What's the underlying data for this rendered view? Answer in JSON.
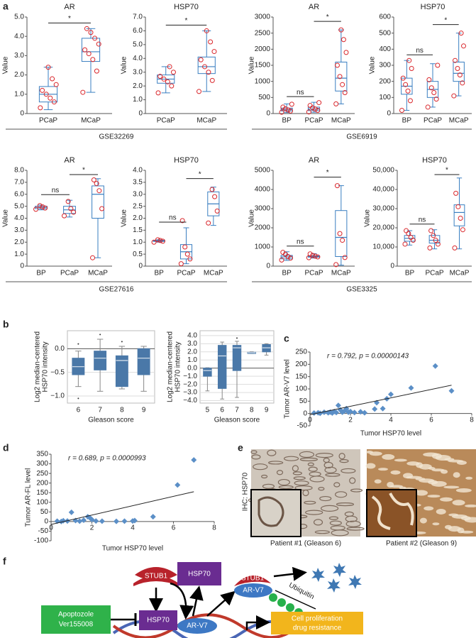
{
  "panel_labels": [
    "a",
    "b",
    "c",
    "d",
    "e",
    "f"
  ],
  "datasets": [
    "GSE32269",
    "GSE6919",
    "GSE27616",
    "GSE3325"
  ],
  "chart_data": [
    {
      "type": "box",
      "title": "AR",
      "ylabel": "Value",
      "categories": [
        "PCaP",
        "MCaP"
      ],
      "ylim": [
        0,
        5
      ],
      "yticks": [
        0,
        {
          "value": 1,
          "label": "1.0"
        },
        {
          "value": 2,
          "label": "2.0"
        },
        {
          "value": 3,
          "label": "3.0"
        },
        {
          "value": 4,
          "label": "4.0"
        },
        {
          "value": 5,
          "label": "5.0"
        }
      ],
      "box_color": "#3a7fc1",
      "point_color": "#d9262b",
      "groups": [
        {
          "min": 0.2,
          "q1": 0.6,
          "median": 1.0,
          "q3": 1.4,
          "max": 2.4,
          "points": [
            0.3,
            0.6,
            0.8,
            1.0,
            1.2,
            1.5,
            1.8,
            2.4
          ]
        },
        {
          "min": 1.1,
          "q1": 2.7,
          "median": 3.2,
          "q3": 3.9,
          "max": 4.4,
          "points": [
            1.1,
            2.2,
            2.8,
            3.1,
            3.3,
            3.6,
            3.9,
            4.2,
            4.4
          ]
        }
      ],
      "comparisons": [
        {
          "from": 0,
          "to": 1,
          "label": "*"
        }
      ]
    },
    {
      "type": "box",
      "title": "HSP70",
      "ylabel": "Value",
      "categories": [
        "PCaP",
        "MCaP"
      ],
      "ylim": [
        0,
        7
      ],
      "yticks": [
        0,
        {
          "value": 1,
          "label": "1.0"
        },
        {
          "value": 2,
          "label": "2.0"
        },
        {
          "value": 3,
          "label": "3.0"
        },
        {
          "value": 4,
          "label": "4.0"
        },
        {
          "value": 5,
          "label": "5.0"
        },
        {
          "value": 6,
          "label": "6.0"
        },
        {
          "value": 7,
          "label": "7.0"
        }
      ],
      "box_color": "#3a7fc1",
      "point_color": "#d9262b",
      "groups": [
        {
          "min": 1.5,
          "q1": 2.2,
          "median": 2.5,
          "q3": 2.8,
          "max": 3.4,
          "points": [
            1.5,
            2.0,
            2.3,
            2.5,
            2.7,
            3.0,
            3.4
          ]
        },
        {
          "min": 1.6,
          "q1": 2.9,
          "median": 3.4,
          "q3": 4.1,
          "max": 6.0,
          "points": [
            1.6,
            2.4,
            3.0,
            3.4,
            3.9,
            4.5,
            5.2,
            6.0
          ]
        }
      ],
      "comparisons": [
        {
          "from": 0,
          "to": 1,
          "label": "*"
        }
      ]
    },
    {
      "type": "box",
      "title": "AR",
      "ylabel": "Value",
      "categories": [
        "BP",
        "PCaP",
        "MCaP"
      ],
      "ylim": [
        0,
        3000
      ],
      "yticks": [
        0,
        500,
        1000,
        1500,
        2000,
        2500,
        3000
      ],
      "box_color": "#3a7fc1",
      "point_color": "#d9262b",
      "groups": [
        {
          "min": 30,
          "q1": 80,
          "median": 120,
          "q3": 170,
          "max": 300,
          "points": [
            40,
            80,
            110,
            150,
            200,
            290
          ]
        },
        {
          "min": 40,
          "q1": 90,
          "median": 140,
          "q3": 200,
          "max": 350,
          "points": [
            50,
            100,
            140,
            180,
            250,
            340
          ]
        },
        {
          "min": 300,
          "q1": 700,
          "median": 1100,
          "q3": 1600,
          "max": 2600,
          "points": [
            300,
            650,
            900,
            1150,
            1500,
            1900,
            2300,
            2600
          ]
        }
      ],
      "comparisons": [
        {
          "from": 0,
          "to": 1,
          "label": "ns"
        },
        {
          "from": 1,
          "to": 2,
          "label": "*"
        }
      ]
    },
    {
      "type": "box",
      "title": "HSP70",
      "ylabel": "Value",
      "categories": [
        "BP",
        "PCaP",
        "MCaP"
      ],
      "ylim": [
        0,
        600
      ],
      "yticks": [
        0,
        100,
        200,
        300,
        400,
        500,
        600
      ],
      "box_color": "#3a7fc1",
      "point_color": "#d9262b",
      "groups": [
        {
          "min": 20,
          "q1": 120,
          "median": 170,
          "q3": 220,
          "max": 330,
          "points": [
            20,
            80,
            140,
            180,
            220,
            280,
            330
          ]
        },
        {
          "min": 40,
          "q1": 100,
          "median": 150,
          "q3": 200,
          "max": 310,
          "points": [
            40,
            90,
            130,
            160,
            210,
            300
          ]
        },
        {
          "min": 110,
          "q1": 200,
          "median": 250,
          "q3": 320,
          "max": 500,
          "points": [
            110,
            190,
            240,
            280,
            330,
            420,
            500
          ]
        }
      ],
      "comparisons": [
        {
          "from": 0,
          "to": 1,
          "label": "ns"
        },
        {
          "from": 1,
          "to": 2,
          "label": "*"
        }
      ]
    },
    {
      "type": "box",
      "title": "AR",
      "ylabel": "Value",
      "categories": [
        "BP",
        "PCaP",
        "MCaP"
      ],
      "ylim": [
        0,
        8
      ],
      "yticks": [
        0,
        {
          "value": 1,
          "label": "1.0"
        },
        {
          "value": 2,
          "label": "2.0"
        },
        {
          "value": 3,
          "label": "3.0"
        },
        {
          "value": 4,
          "label": "4.0"
        },
        {
          "value": 5,
          "label": "5.0"
        },
        {
          "value": 6,
          "label": "6.0"
        },
        {
          "value": 7,
          "label": "7.0"
        },
        {
          "value": 8,
          "label": "8.0"
        }
      ],
      "box_color": "#3a7fc1",
      "point_color": "#d9262b",
      "groups": [
        {
          "min": 4.7,
          "q1": 4.8,
          "median": 4.9,
          "q3": 5.0,
          "max": 5.1,
          "points": [
            4.75,
            4.85,
            4.95,
            5.05
          ]
        },
        {
          "min": 4.1,
          "q1": 4.4,
          "median": 4.7,
          "q3": 5.0,
          "max": 5.5,
          "points": [
            4.2,
            4.5,
            4.8,
            5.4
          ]
        },
        {
          "min": 0.7,
          "q1": 4.0,
          "median": 6.0,
          "q3": 6.7,
          "max": 7.3,
          "points": [
            0.7,
            4.8,
            6.3,
            6.9,
            7.2
          ]
        }
      ],
      "comparisons": [
        {
          "from": 0,
          "to": 1,
          "label": "ns"
        },
        {
          "from": 1,
          "to": 2,
          "label": "*"
        }
      ]
    },
    {
      "type": "box",
      "title": "HSP70",
      "ylabel": "Value",
      "categories": [
        "BP",
        "PCaP",
        "MCaP"
      ],
      "ylim": [
        0,
        4
      ],
      "yticks": [
        0,
        0.5,
        {
          "value": 1,
          "label": "1.0"
        },
        1.5,
        {
          "value": 2,
          "label": "2.0"
        },
        2.5,
        {
          "value": 3,
          "label": "3.0"
        },
        3.5,
        {
          "value": 4,
          "label": "4.0"
        }
      ],
      "box_color": "#3a7fc1",
      "point_color": "#d9262b",
      "groups": [
        {
          "min": 1.0,
          "q1": 1.03,
          "median": 1.05,
          "q3": 1.08,
          "max": 1.1,
          "points": [
            1.0,
            1.04,
            1.07,
            1.1
          ]
        },
        {
          "min": 0.1,
          "q1": 0.3,
          "median": 0.6,
          "q3": 0.9,
          "max": 1.6,
          "points": [
            0.1,
            0.3,
            0.5,
            0.8,
            1.9
          ]
        },
        {
          "min": 1.7,
          "q1": 2.1,
          "median": 2.6,
          "q3": 3.1,
          "max": 3.3,
          "points": [
            1.8,
            2.3,
            2.9,
            3.2
          ]
        }
      ],
      "comparisons": [
        {
          "from": 0,
          "to": 1,
          "label": "ns"
        },
        {
          "from": 1,
          "to": 2,
          "label": "*"
        }
      ]
    },
    {
      "type": "box",
      "title": "AR",
      "ylabel": "Value",
      "categories": [
        "BP",
        "PCaP",
        "MCaP"
      ],
      "ylim": [
        0,
        5000
      ],
      "yticks": [
        0,
        1000,
        2000,
        3000,
        4000,
        5000
      ],
      "box_color": "#3a7fc1",
      "point_color": "#d9262b",
      "groups": [
        {
          "min": 300,
          "q1": 380,
          "median": 480,
          "q3": 560,
          "max": 750,
          "points": [
            320,
            420,
            500,
            620,
            720
          ]
        },
        {
          "min": 420,
          "q1": 470,
          "median": 500,
          "q3": 540,
          "max": 650,
          "points": [
            440,
            480,
            520,
            560,
            640
          ]
        },
        {
          "min": 50,
          "q1": 500,
          "median": 1500,
          "q3": 2900,
          "max": 4200,
          "points": [
            80,
            450,
            1350,
            1700,
            4200
          ]
        }
      ],
      "comparisons": [
        {
          "from": 0,
          "to": 1,
          "label": "ns"
        },
        {
          "from": 1,
          "to": 2,
          "label": "*"
        }
      ]
    },
    {
      "type": "box",
      "title": "HSP70",
      "ylabel": "Value",
      "categories": [
        "BP",
        "PCaP",
        "MCaP"
      ],
      "ylim": [
        0,
        50000
      ],
      "yticks": [
        0,
        {
          "value": 10000,
          "label": "10,000"
        },
        {
          "value": 20000,
          "label": "20,000"
        },
        {
          "value": 30000,
          "label": "30,000"
        },
        {
          "value": 40000,
          "label": "40,000"
        },
        {
          "value": 50000,
          "label": "50,000"
        }
      ],
      "box_color": "#3a7fc1",
      "point_color": "#d9262b",
      "groups": [
        {
          "min": 11000,
          "q1": 13000,
          "median": 14500,
          "q3": 16000,
          "max": 18500,
          "points": [
            11500,
            13500,
            15000,
            17000,
            18500
          ]
        },
        {
          "min": 9000,
          "q1": 12000,
          "median": 13500,
          "q3": 16000,
          "max": 19000,
          "points": [
            9500,
            11500,
            13500,
            16000,
            18500
          ]
        },
        {
          "min": 9000,
          "q1": 21000,
          "median": 28000,
          "q3": 32000,
          "max": 46000,
          "points": [
            9500,
            19000,
            25000,
            31000,
            38000
          ]
        }
      ],
      "comparisons": [
        {
          "from": 0,
          "to": 1,
          "label": "ns"
        },
        {
          "from": 1,
          "to": 2,
          "label": "*"
        }
      ]
    },
    {
      "type": "box",
      "ylabel": [
        "Log2 median-centered",
        "HSP70 intensity"
      ],
      "xlabel": "Gleason score",
      "categories": [
        "6",
        "7",
        "8",
        "9"
      ],
      "ylim": [
        -1.15,
        0.38
      ],
      "yticks": [
        {
          "value": -1,
          "label": "−1.0"
        },
        {
          "value": -0.5,
          "label": "−0.5"
        },
        {
          "value": 0,
          "label": "0.0"
        }
      ],
      "grid": true,
      "box_color": "#4a78a8",
      "box_fill": "#4a78a8",
      "groups": [
        {
          "min": -0.8,
          "q1": -0.55,
          "median": -0.38,
          "q3": -0.2,
          "max": -0.05,
          "outliers": [
            -1.05,
            0.1
          ]
        },
        {
          "min": -0.9,
          "q1": -0.45,
          "median": -0.2,
          "q3": -0.05,
          "max": 0.2,
          "outliers": [
            0.3
          ]
        },
        {
          "min": -0.85,
          "q1": -0.8,
          "median": -0.25,
          "q3": -0.15,
          "max": 0.05,
          "outliers": [
            0.15
          ]
        },
        {
          "min": -0.9,
          "q1": -0.55,
          "median": -0.2,
          "q3": 0.0,
          "max": 0.05,
          "outliers": []
        }
      ]
    },
    {
      "type": "box",
      "ylabel": [
        "Log2 median-centered",
        "HSP70 intensity"
      ],
      "xlabel": "Gleason score",
      "categories": [
        "5",
        "6",
        "7",
        "8",
        "9"
      ],
      "ylim": [
        -4.3,
        4.6
      ],
      "yticks": [
        {
          "value": -4,
          "label": "−4.0"
        },
        {
          "value": -3,
          "label": "−3.0"
        },
        {
          "value": -2,
          "label": "−2.0"
        },
        {
          "value": -1,
          "label": "−1.0"
        },
        {
          "value": 0,
          "label": "0.0"
        },
        {
          "value": 1,
          "label": "1.0"
        },
        {
          "value": 2,
          "label": "2.0"
        },
        {
          "value": 3,
          "label": "3.0"
        },
        {
          "value": 4,
          "label": "4.0"
        }
      ],
      "grid": true,
      "box_color": "#4a78a8",
      "box_fill": "#4a78a8",
      "groups": [
        {
          "min": -2.8,
          "q1": -1.0,
          "median": -0.3,
          "q3": 0.0,
          "max": 0.05,
          "outliers": []
        },
        {
          "min": -3.8,
          "q1": -2.5,
          "median": 1.5,
          "q3": 2.8,
          "max": 3.2,
          "outliers": []
        },
        {
          "min": -3.6,
          "q1": -0.3,
          "median": 2.5,
          "q3": 2.8,
          "max": 3.3,
          "outliers": [
            3.7
          ]
        },
        {
          "min": 1.8,
          "q1": 1.8,
          "median": 1.9,
          "q3": 1.95,
          "max": 2.0,
          "outliers": []
        },
        {
          "min": 1.6,
          "q1": 2.0,
          "median": 2.5,
          "q3": 2.9,
          "max": 3.0,
          "outliers": []
        }
      ]
    },
    {
      "type": "scatter",
      "annotation": "r = 0.792, p = 0.00000143",
      "xlabel": "Tumor HSP70 level",
      "ylabel": "Tumor AR-V7 level",
      "xlim": [
        0,
        8
      ],
      "xticks": [
        0,
        2,
        4,
        6,
        8
      ],
      "ylim": [
        -50,
        250
      ],
      "yticks": [
        -50,
        0,
        50,
        100,
        150,
        200,
        250
      ],
      "color": "#5b8fc7",
      "x": [
        0.2,
        0.4,
        0.5,
        0.7,
        0.9,
        1.0,
        1.1,
        1.2,
        1.3,
        1.4,
        1.5,
        1.6,
        1.7,
        1.8,
        1.9,
        2.0,
        2.2,
        2.5,
        2.7,
        3.2,
        3.3,
        3.6,
        3.8,
        4.0,
        5.0,
        6.2,
        7.0
      ],
      "values": [
        2,
        3,
        1,
        5,
        3,
        6,
        2,
        8,
        4,
        33,
        15,
        5,
        10,
        20,
        5,
        8,
        4,
        7,
        3,
        18,
        44,
        20,
        60,
        78,
        104,
        193,
        92
      ],
      "fit": {
        "x": [
          0,
          7
        ],
        "y": [
          -5,
          115
        ]
      }
    },
    {
      "type": "scatter",
      "annotation": "r = 0.689, p = 0.0000993",
      "xlabel": "Tumor HSP70 level",
      "ylabel": "Tumor AR-FL level",
      "xlim": [
        0,
        8
      ],
      "xticks": [
        0,
        2,
        4,
        6,
        8
      ],
      "ylim": [
        -100,
        350
      ],
      "yticks": [
        -100,
        -50,
        0,
        50,
        100,
        150,
        200,
        250,
        300,
        350
      ],
      "color": "#5b8fc7",
      "x": [
        0.3,
        0.5,
        0.6,
        0.8,
        1.0,
        1.2,
        1.4,
        1.6,
        1.8,
        1.9,
        2.0,
        2.2,
        2.5,
        3.2,
        3.6,
        4.0,
        4.1,
        5.0,
        6.2,
        7.0
      ],
      "values": [
        2,
        0,
        4,
        3,
        48,
        5,
        2,
        7,
        25,
        20,
        10,
        3,
        2,
        1,
        2,
        3,
        5,
        25,
        190,
        320
      ],
      "fit": {
        "x": [
          0,
          7
        ],
        "y": [
          -15,
          155
        ]
      }
    }
  ],
  "image_panel": {
    "stain_label": "IHC: HSP70",
    "captions": [
      "Patient #1 (Gleason 6)",
      "Patient #2 (Gleason 9)"
    ]
  },
  "diagram": {
    "stub1_top": "STUB1",
    "hsp70_top": "HSP70",
    "stub1_complex": "STUB1",
    "arv7_complex": "AR-V7",
    "ubiquitin": "Ubiquitin",
    "inhibitor": [
      "Apoptozole",
      "Ver155008"
    ],
    "hsp70_bottom": "HSP70",
    "arv7_bottom": "AR-V7",
    "outcome": [
      "Cell proliferation",
      "drug resistance"
    ]
  }
}
